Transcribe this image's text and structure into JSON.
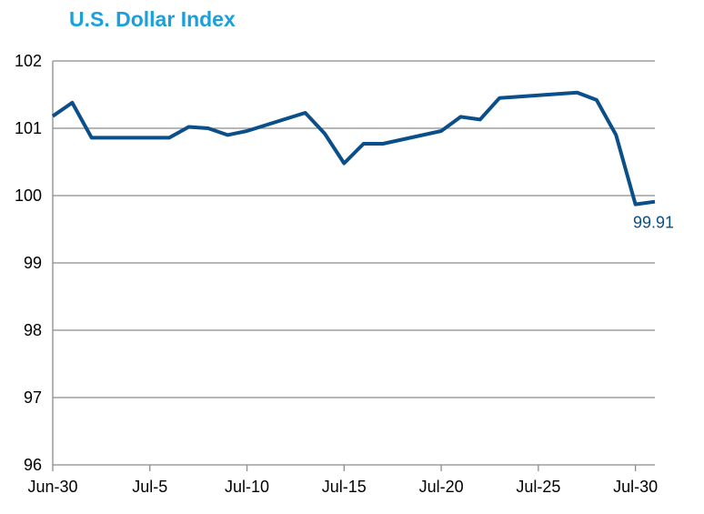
{
  "chart_data": {
    "type": "line",
    "title": "U.S. Dollar Index",
    "xlabel": "",
    "ylabel": "",
    "x_tick_labels": [
      "Jun-30",
      "Jul-5",
      "Jul-10",
      "Jul-15",
      "Jul-20",
      "Jul-25",
      "Jul-30"
    ],
    "x_tick_days": [
      0,
      5,
      10,
      15,
      20,
      25,
      30
    ],
    "y_ticks": [
      96,
      97,
      98,
      99,
      100,
      101,
      102
    ],
    "ylim": [
      96,
      102
    ],
    "grid": "horizontal",
    "legend": "none",
    "series": [
      {
        "color": "#0b4f8a",
        "x": [
          "Jun-30",
          "Jul-1",
          "Jul-2",
          "Jul-6",
          "Jul-7",
          "Jul-8",
          "Jul-9",
          "Jul-10",
          "Jul-13",
          "Jul-14",
          "Jul-15",
          "Jul-16",
          "Jul-17",
          "Jul-20",
          "Jul-21",
          "Jul-22",
          "Jul-23",
          "Jul-27",
          "Jul-28",
          "Jul-29",
          "Jul-30",
          "Jul-31"
        ],
        "day_index": [
          0,
          1,
          2,
          6,
          7,
          8,
          9,
          10,
          13,
          14,
          15,
          16,
          17,
          20,
          21,
          22,
          23,
          27,
          28,
          29,
          30,
          31
        ],
        "values": [
          101.18,
          101.38,
          100.86,
          100.86,
          101.02,
          101.0,
          100.9,
          100.96,
          101.23,
          100.92,
          100.48,
          100.77,
          100.77,
          100.96,
          101.17,
          101.13,
          101.45,
          101.53,
          101.42,
          100.9,
          99.87,
          99.91
        ]
      }
    ],
    "annotations": [
      {
        "text": "99.91",
        "x": "Jul-31",
        "y": 99.91
      }
    ]
  }
}
